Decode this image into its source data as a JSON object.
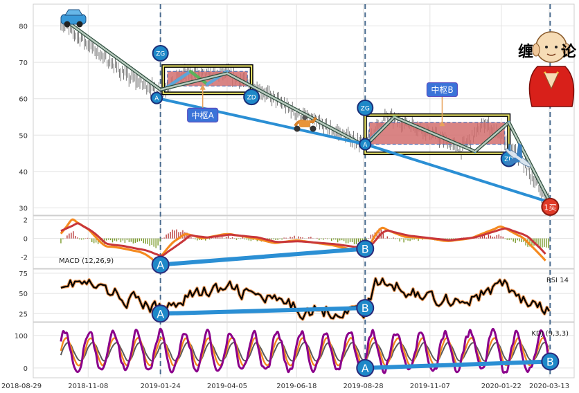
{
  "chart_data": [
    {
      "type": "candlestick",
      "panel": "price",
      "ylim": [
        28,
        86
      ],
      "yticks": [
        30,
        40,
        50,
        60,
        70,
        80
      ],
      "price_path": [
        [
          "2018-10-10",
          81
        ],
        [
          "2018-11-08",
          75
        ],
        [
          "2018-12-20",
          66
        ],
        [
          "2019-01-24",
          62
        ],
        [
          "2019-02-20",
          67
        ],
        [
          "2019-03-15",
          66.5
        ],
        [
          "2019-04-05",
          67
        ],
        [
          "2019-05-10",
          62.5
        ],
        [
          "2019-06-18",
          56
        ],
        [
          "2019-07-25",
          51.5
        ],
        [
          "2019-08-30",
          47.5
        ],
        [
          "2019-09-20",
          55
        ],
        [
          "2019-10-20",
          53
        ],
        [
          "2019-12-10",
          46
        ],
        [
          "2020-01-05",
          53.5
        ],
        [
          "2020-02-10",
          44
        ],
        [
          "2020-03-01",
          36
        ],
        [
          "2020-03-14",
          31
        ]
      ],
      "stroke_segments": [
        [
          "2018-10-15",
          81.5,
          "2019-01-24",
          62.5
        ],
        [
          "2019-01-24",
          62.5,
          "2019-04-05",
          67
        ],
        [
          "2019-04-05",
          67,
          "2019-08-30",
          47
        ],
        [
          "2019-08-30",
          47,
          "2019-09-30",
          55
        ],
        [
          "2019-09-30",
          55,
          "2019-12-25",
          45.5
        ],
        [
          "2019-12-25",
          45.5,
          "2020-01-30",
          53.5
        ],
        [
          "2020-01-30",
          53.5,
          "2020-03-14",
          31.5
        ]
      ],
      "trend_lines": [
        {
          "from": [
            "2019-01-20",
            60.2
          ],
          "to": [
            "2019-08-30",
            47.5
          ]
        },
        {
          "from": [
            "2019-08-30",
            47.5
          ],
          "to": [
            "2020-03-14",
            31.5
          ]
        }
      ],
      "zhongshu": [
        {
          "label": "中枢A",
          "start": "2019-01-27",
          "end": "2019-05-01",
          "ZG": 67.5,
          "ZD": 63.5,
          "outer_top": 69,
          "outer_bottom": 61.5
        },
        {
          "label": "中枢B",
          "start": "2019-08-30",
          "end": "2020-01-30",
          "ZG": 53.5,
          "ZD": 47.5,
          "outer_top": 55.5,
          "outer_bottom": 45
        }
      ],
      "markers": [
        {
          "text": "ZG",
          "x": "2019-01-24",
          "y": 72.5
        },
        {
          "text": "ZD",
          "x": "2019-05-01",
          "y": 60.5
        },
        {
          "text": "ZG",
          "x": "2019-08-30",
          "y": 57.5
        },
        {
          "text": "ZD",
          "x": "2020-01-30",
          "y": 43.5
        },
        {
          "text": "A",
          "x": "2019-01-20",
          "y": 60.2
        },
        {
          "text": "A",
          "x": "2019-08-30",
          "y": 47.5
        }
      ],
      "buy_point": {
        "text": "1买",
        "x": "2020-03-14",
        "y": 30.3
      },
      "decorations": {
        "title_text": "缠",
        "title_text2": "论"
      }
    },
    {
      "type": "line",
      "panel": "macd",
      "label": "MACD (12,26,9)",
      "ylim": [
        -3.2,
        2.4
      ],
      "yticks": [
        2,
        0,
        -2
      ],
      "dif": [
        [
          "2018-10-10",
          0.5
        ],
        [
          "2018-10-22",
          2.0
        ],
        [
          "2018-11-08",
          1.0
        ],
        [
          "2018-11-25",
          -0.8
        ],
        [
          "2018-12-12",
          -1.0
        ],
        [
          "2019-01-05",
          -1.5
        ],
        [
          "2019-01-20",
          -2.5
        ],
        [
          "2019-02-05",
          -0.5
        ],
        [
          "2019-02-20",
          0.5
        ],
        [
          "2019-03-10",
          0.0
        ],
        [
          "2019-04-05",
          0.5
        ],
        [
          "2019-05-05",
          0.0
        ],
        [
          "2019-05-25",
          -0.5
        ],
        [
          "2019-06-18",
          -0.2
        ],
        [
          "2019-07-25",
          -0.7
        ],
        [
          "2019-08-30",
          -1.5
        ],
        [
          "2019-09-15",
          1.2
        ],
        [
          "2019-10-10",
          0.2
        ],
        [
          "2019-11-07",
          0.0
        ],
        [
          "2019-11-25",
          -0.3
        ],
        [
          "2019-12-20",
          0.0
        ],
        [
          "2020-01-22",
          1.3
        ],
        [
          "2020-02-15",
          0.0
        ],
        [
          "2020-03-01",
          -1.5
        ],
        [
          "2020-03-14",
          -2.9
        ]
      ],
      "dea": [
        [
          "2018-10-10",
          0.8
        ],
        [
          "2018-10-28",
          1.6
        ],
        [
          "2018-11-12",
          0.8
        ],
        [
          "2018-11-28",
          -0.6
        ],
        [
          "2018-12-15",
          -0.8
        ],
        [
          "2019-01-10",
          -1.3
        ],
        [
          "2019-01-25",
          -1.9
        ],
        [
          "2019-02-10",
          -0.8
        ],
        [
          "2019-02-25",
          0.3
        ],
        [
          "2019-03-15",
          0.1
        ],
        [
          "2019-04-08",
          0.4
        ],
        [
          "2019-05-08",
          0.1
        ],
        [
          "2019-05-28",
          -0.4
        ],
        [
          "2019-06-20",
          -0.3
        ],
        [
          "2019-07-28",
          -0.6
        ],
        [
          "2019-09-02",
          -1.1
        ],
        [
          "2019-09-20",
          0.9
        ],
        [
          "2019-10-15",
          0.3
        ],
        [
          "2019-11-10",
          0.0
        ],
        [
          "2019-11-28",
          -0.2
        ],
        [
          "2019-12-25",
          0.1
        ],
        [
          "2020-01-26",
          1.1
        ],
        [
          "2020-02-18",
          0.3
        ],
        [
          "2020-03-04",
          -1.1
        ],
        [
          "2020-03-14",
          -2.2
        ]
      ],
      "divergence": [
        [
          "2019-01-24",
          -2.8,
          "A"
        ],
        [
          "2019-08-30",
          -1.1,
          "B"
        ]
      ]
    },
    {
      "type": "line",
      "panel": "rsi",
      "label": "RSI 14",
      "ylim": [
        15,
        80
      ],
      "yticks": [
        75,
        50,
        25
      ],
      "divergence": [
        [
          "2019-01-24",
          25,
          "A"
        ],
        [
          "2019-08-30",
          32,
          "B"
        ]
      ]
    },
    {
      "type": "line",
      "panel": "kdj",
      "label": "KDJ (9,3,3)",
      "ylim": [
        -30,
        140
      ],
      "yticks": [
        100,
        0
      ],
      "divergence": [
        [
          "2019-08-30",
          0,
          "A"
        ],
        [
          "2020-03-14",
          20,
          "B"
        ]
      ]
    }
  ],
  "x_axis": {
    "tick_labels": [
      "2018-08-29",
      "2018-11-08",
      "2019-01-24",
      "2019-04-05",
      "2019-06-18",
      "2019-08-28",
      "2019-11-07",
      "2020-01-22",
      "2020-03-13"
    ]
  },
  "vertical_markers": [
    "2019-01-24",
    "2019-08-30",
    "2020-03-14"
  ],
  "colors": {
    "trend": "#2b8fd4",
    "up": "#5da5d8",
    "down": "#5bb25b",
    "pivot_fill": "#d26f6f",
    "pivot_frame": "#f2ec6a",
    "dif": "#f58a1f",
    "dea": "#c8363a",
    "rsi": "#000000",
    "kdj_k": "#f58a1f",
    "kdj_d": "#5a5a5a",
    "kdj_j": "#8b008b",
    "marker": "#1e88c8",
    "buy": "#e03a28"
  }
}
